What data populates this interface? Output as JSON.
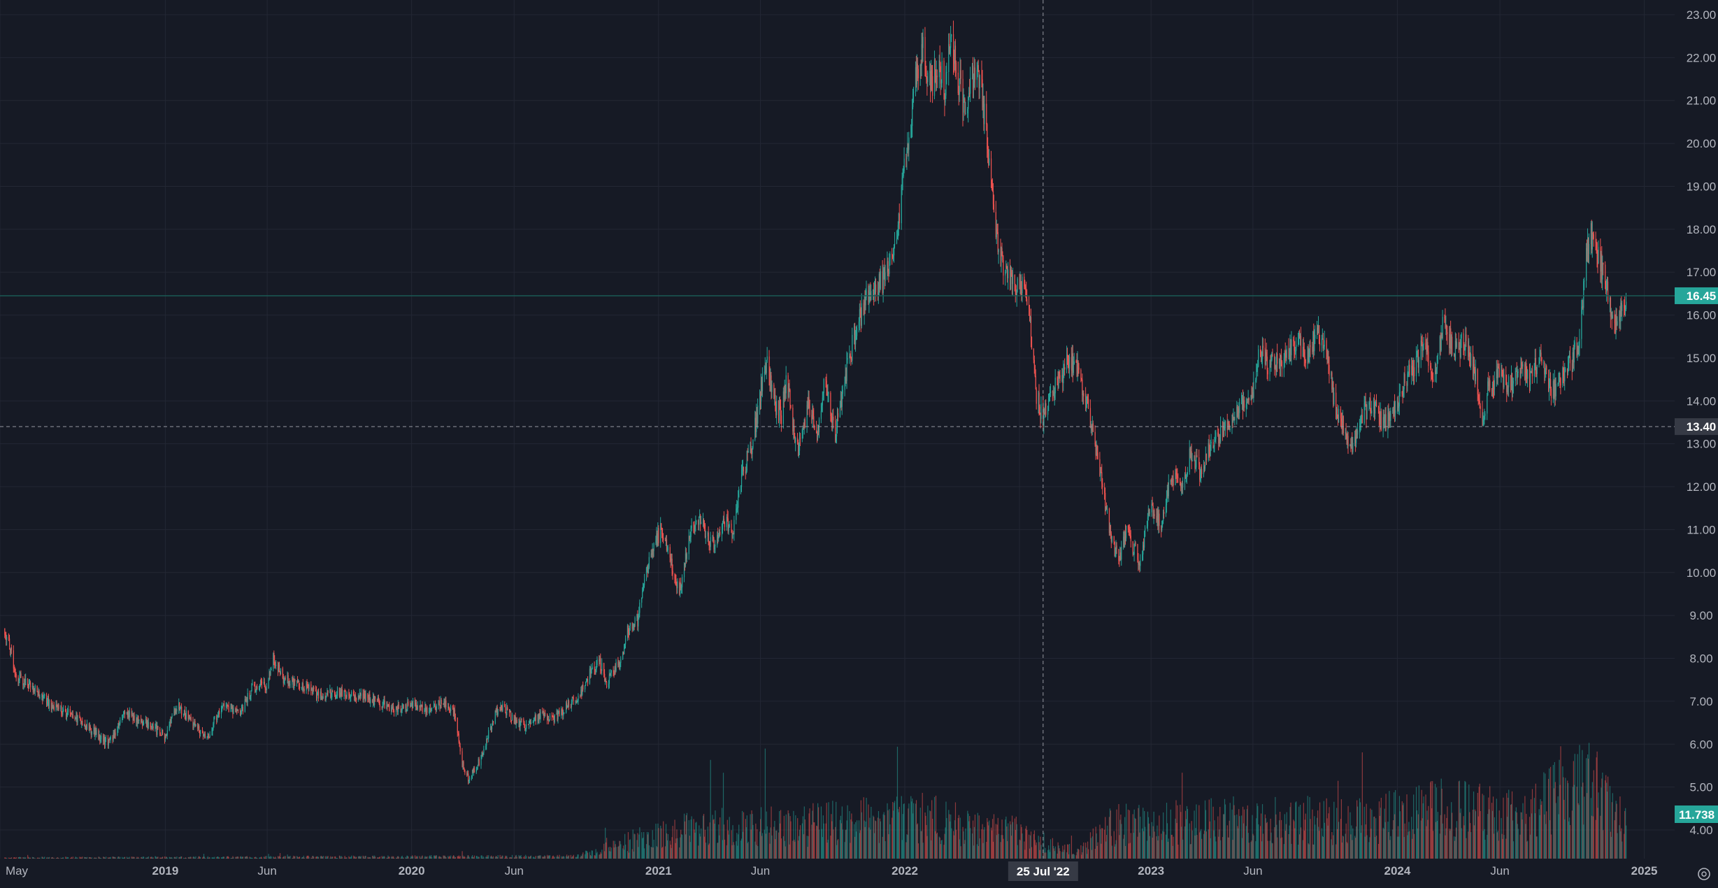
{
  "chart_data": {
    "type": "candlestick",
    "price_scale": {
      "ylim": [
        3.4,
        23.4
      ],
      "ticks": [
        {
          "value": 4,
          "label": "4.00"
        },
        {
          "value": 5,
          "label": "5.00"
        },
        {
          "value": 6,
          "label": "6.00"
        },
        {
          "value": 7,
          "label": "7.00"
        },
        {
          "value": 8,
          "label": "8.00"
        },
        {
          "value": 9,
          "label": "9.00"
        },
        {
          "value": 10,
          "label": "10.00"
        },
        {
          "value": 11,
          "label": "11.00"
        },
        {
          "value": 12,
          "label": "12.00"
        },
        {
          "value": 13,
          "label": "13.00"
        },
        {
          "value": 14,
          "label": "14.00"
        },
        {
          "value": 15,
          "label": "15.00"
        },
        {
          "value": 16,
          "label": "16.00"
        },
        {
          "value": 17,
          "label": "17.00"
        },
        {
          "value": 18,
          "label": "18.00"
        },
        {
          "value": 19,
          "label": "19.00"
        },
        {
          "value": 20,
          "label": "20.00"
        },
        {
          "value": 21,
          "label": "21.00"
        },
        {
          "value": 22,
          "label": "22.00"
        },
        {
          "value": 23,
          "label": "23.00"
        }
      ]
    },
    "time_scale": {
      "range": [
        "2018-05-01",
        "2025-02-15"
      ],
      "ticks": [
        {
          "date": "2018-05-01",
          "label": "May",
          "year": false
        },
        {
          "date": "2019-01-01",
          "label": "2019",
          "year": true
        },
        {
          "date": "2019-06-01",
          "label": "Jun",
          "year": false
        },
        {
          "date": "2020-01-01",
          "label": "2020",
          "year": true
        },
        {
          "date": "2020-06-01",
          "label": "Jun",
          "year": false
        },
        {
          "date": "2021-01-01",
          "label": "2021",
          "year": true
        },
        {
          "date": "2021-06-01",
          "label": "Jun",
          "year": false
        },
        {
          "date": "2022-01-01",
          "label": "2022",
          "year": true
        },
        {
          "date": "2022-06-20",
          "label": "Ju",
          "year": false
        },
        {
          "date": "2023-01-01",
          "label": "2023",
          "year": true
        },
        {
          "date": "2023-06-01",
          "label": "Jun",
          "year": false
        },
        {
          "date": "2024-01-01",
          "label": "2024",
          "year": true
        },
        {
          "date": "2024-06-01",
          "label": "Jun",
          "year": false
        },
        {
          "date": "2025-01-01",
          "label": "2025",
          "year": true
        }
      ]
    },
    "price_path": [
      [
        "2018-05-08",
        8.7
      ],
      [
        "2018-05-25",
        7.6
      ],
      [
        "2018-06-20",
        7.3
      ],
      [
        "2018-07-15",
        6.9
      ],
      [
        "2018-08-15",
        6.7
      ],
      [
        "2018-09-15",
        6.3
      ],
      [
        "2018-10-10",
        6.0
      ],
      [
        "2018-11-01",
        6.7
      ],
      [
        "2018-12-01",
        6.5
      ],
      [
        "2019-01-01",
        6.2
      ],
      [
        "2019-01-20",
        6.9
      ],
      [
        "2019-02-15",
        6.4
      ],
      [
        "2019-03-05",
        6.2
      ],
      [
        "2019-03-25",
        6.9
      ],
      [
        "2019-04-20",
        6.7
      ],
      [
        "2019-05-10",
        7.3
      ],
      [
        "2019-06-01",
        7.4
      ],
      [
        "2019-06-10",
        8.0
      ],
      [
        "2019-06-25",
        7.5
      ],
      [
        "2019-07-20",
        7.4
      ],
      [
        "2019-08-20",
        7.1
      ],
      [
        "2019-09-15",
        7.2
      ],
      [
        "2019-10-15",
        7.1
      ],
      [
        "2019-11-10",
        7.0
      ],
      [
        "2019-12-01",
        6.8
      ],
      [
        "2020-01-01",
        6.9
      ],
      [
        "2020-01-25",
        6.8
      ],
      [
        "2020-02-15",
        7.0
      ],
      [
        "2020-03-05",
        6.7
      ],
      [
        "2020-03-15",
        5.6
      ],
      [
        "2020-03-25",
        5.2
      ],
      [
        "2020-04-10",
        5.6
      ],
      [
        "2020-04-25",
        6.3
      ],
      [
        "2020-05-10",
        6.9
      ],
      [
        "2020-06-01",
        6.6
      ],
      [
        "2020-06-20",
        6.4
      ],
      [
        "2020-07-10",
        6.7
      ],
      [
        "2020-08-01",
        6.6
      ],
      [
        "2020-08-20",
        6.9
      ],
      [
        "2020-09-05",
        7.1
      ],
      [
        "2020-09-20",
        7.6
      ],
      [
        "2020-10-05",
        8.0
      ],
      [
        "2020-10-15",
        7.4
      ],
      [
        "2020-10-25",
        7.7
      ],
      [
        "2020-11-05",
        7.9
      ],
      [
        "2020-11-15",
        8.6
      ],
      [
        "2020-12-01",
        8.9
      ],
      [
        "2020-12-20",
        10.5
      ],
      [
        "2021-01-05",
        11.0
      ],
      [
        "2021-01-20",
        10.2
      ],
      [
        "2021-02-01",
        9.5
      ],
      [
        "2021-02-10",
        10.4
      ],
      [
        "2021-02-25",
        11.3
      ],
      [
        "2021-03-10",
        11.0
      ],
      [
        "2021-03-25",
        10.6
      ],
      [
        "2021-04-10",
        11.2
      ],
      [
        "2021-04-20",
        10.8
      ],
      [
        "2021-05-05",
        12.3
      ],
      [
        "2021-05-20",
        13.0
      ],
      [
        "2021-06-01",
        14.2
      ],
      [
        "2021-06-10",
        15.0
      ],
      [
        "2021-06-20",
        14.0
      ],
      [
        "2021-07-01",
        13.6
      ],
      [
        "2021-07-10",
        14.5
      ],
      [
        "2021-07-20",
        13.3
      ],
      [
        "2021-07-28",
        12.9
      ],
      [
        "2021-08-10",
        13.9
      ],
      [
        "2021-08-25",
        13.3
      ],
      [
        "2021-09-05",
        14.6
      ],
      [
        "2021-09-20",
        13.2
      ],
      [
        "2021-10-05",
        14.6
      ],
      [
        "2021-10-20",
        15.6
      ],
      [
        "2021-11-05",
        16.4
      ],
      [
        "2021-11-20",
        16.6
      ],
      [
        "2021-12-05",
        16.9
      ],
      [
        "2021-12-20",
        17.8
      ],
      [
        "2022-01-01",
        19.5
      ],
      [
        "2022-01-10",
        20.5
      ],
      [
        "2022-01-20",
        21.8
      ],
      [
        "2022-01-28",
        22.2
      ],
      [
        "2022-02-10",
        21.3
      ],
      [
        "2022-02-20",
        22.0
      ],
      [
        "2022-03-01",
        21.3
      ],
      [
        "2022-03-10",
        22.4
      ],
      [
        "2022-03-20",
        21.6
      ],
      [
        "2022-04-01",
        20.8
      ],
      [
        "2022-04-15",
        21.7
      ],
      [
        "2022-04-25",
        21.2
      ],
      [
        "2022-05-05",
        19.8
      ],
      [
        "2022-05-15",
        18.0
      ],
      [
        "2022-05-28",
        17.0
      ],
      [
        "2022-06-10",
        16.8
      ],
      [
        "2022-06-25",
        16.6
      ],
      [
        "2022-07-05",
        15.9
      ],
      [
        "2022-07-15",
        14.1
      ],
      [
        "2022-07-25",
        13.6
      ],
      [
        "2022-08-05",
        14.2
      ],
      [
        "2022-08-20",
        14.5
      ],
      [
        "2022-09-01",
        15.0
      ],
      [
        "2022-09-15",
        14.7
      ],
      [
        "2022-10-01",
        13.7
      ],
      [
        "2022-10-15",
        12.6
      ],
      [
        "2022-10-25",
        11.6
      ],
      [
        "2022-11-05",
        10.6
      ],
      [
        "2022-11-15",
        10.3
      ],
      [
        "2022-11-25",
        11.0
      ],
      [
        "2022-12-05",
        10.6
      ],
      [
        "2022-12-15",
        10.3
      ],
      [
        "2023-01-01",
        11.6
      ],
      [
        "2023-01-15",
        11.1
      ],
      [
        "2023-01-25",
        11.9
      ],
      [
        "2023-02-05",
        12.3
      ],
      [
        "2023-02-15",
        11.9
      ],
      [
        "2023-03-01",
        12.8
      ],
      [
        "2023-03-15",
        12.3
      ],
      [
        "2023-04-01",
        13.0
      ],
      [
        "2023-04-20",
        13.3
      ],
      [
        "2023-05-10",
        13.7
      ],
      [
        "2023-06-01",
        14.3
      ],
      [
        "2023-06-10",
        15.2
      ],
      [
        "2023-06-25",
        14.8
      ],
      [
        "2023-07-15",
        15.0
      ],
      [
        "2023-08-01",
        15.4
      ],
      [
        "2023-08-20",
        15.1
      ],
      [
        "2023-09-05",
        15.6
      ],
      [
        "2023-09-20",
        15.0
      ],
      [
        "2023-10-01",
        13.8
      ],
      [
        "2023-10-15",
        13.3
      ],
      [
        "2023-10-28",
        12.9
      ],
      [
        "2023-11-10",
        13.7
      ],
      [
        "2023-11-25",
        14.0
      ],
      [
        "2023-12-10",
        13.4
      ],
      [
        "2023-12-25",
        13.7
      ],
      [
        "2024-01-10",
        14.4
      ],
      [
        "2024-01-25",
        14.8
      ],
      [
        "2024-02-10",
        15.3
      ],
      [
        "2024-02-25",
        14.6
      ],
      [
        "2024-03-10",
        15.9
      ],
      [
        "2024-03-25",
        15.1
      ],
      [
        "2024-04-10",
        15.4
      ],
      [
        "2024-04-25",
        14.6
      ],
      [
        "2024-05-05",
        13.6
      ],
      [
        "2024-05-15",
        14.3
      ],
      [
        "2024-06-01",
        14.6
      ],
      [
        "2024-06-15",
        14.3
      ],
      [
        "2024-07-01",
        14.8
      ],
      [
        "2024-07-15",
        14.5
      ],
      [
        "2024-08-01",
        15.1
      ],
      [
        "2024-08-15",
        14.2
      ],
      [
        "2024-09-01",
        14.5
      ],
      [
        "2024-09-15",
        14.9
      ],
      [
        "2024-09-28",
        15.4
      ],
      [
        "2024-10-05",
        17.2
      ],
      [
        "2024-10-12",
        17.9
      ],
      [
        "2024-10-22",
        17.5
      ],
      [
        "2024-11-02",
        17.0
      ],
      [
        "2024-11-12",
        16.2
      ],
      [
        "2024-11-20",
        15.8
      ],
      [
        "2024-11-28",
        16.2
      ],
      [
        "2024-12-05",
        16.45
      ]
    ],
    "volume_path": [
      [
        "2018-05-08",
        0.05
      ],
      [
        "2020-09-01",
        0.12
      ],
      [
        "2020-11-15",
        0.8
      ],
      [
        "2021-03-01",
        1.5
      ],
      [
        "2021-08-01",
        1.6
      ],
      [
        "2022-01-15",
        2.0
      ],
      [
        "2022-06-01",
        1.4
      ],
      [
        "2022-09-15",
        0.3
      ],
      [
        "2022-11-01",
        1.6
      ],
      [
        "2023-01-15",
        1.7
      ],
      [
        "2023-06-15",
        1.9
      ],
      [
        "2023-11-01",
        1.8
      ],
      [
        "2024-03-01",
        2.4
      ],
      [
        "2024-07-01",
        2.1
      ],
      [
        "2024-10-10",
        3.6
      ],
      [
        "2024-12-05",
        2.0
      ]
    ],
    "volume_ylim": [
      0,
      11.5
    ],
    "last_price": {
      "value": 16.45,
      "label": "16.45"
    },
    "crosshair": {
      "price": 13.4,
      "price_label": "13.40",
      "date": "2022-07-25",
      "date_label": "25 Jul '22"
    },
    "last_volume": {
      "label": "11.738"
    },
    "colors": {
      "background": "#161a25",
      "grid": "#232734",
      "up": "#26a69a",
      "down": "#ef5350",
      "text": "#b2b5be",
      "last_price_line": "#1a5a55",
      "crosshair": "#9598a1",
      "label_dark": "#363a45"
    }
  }
}
